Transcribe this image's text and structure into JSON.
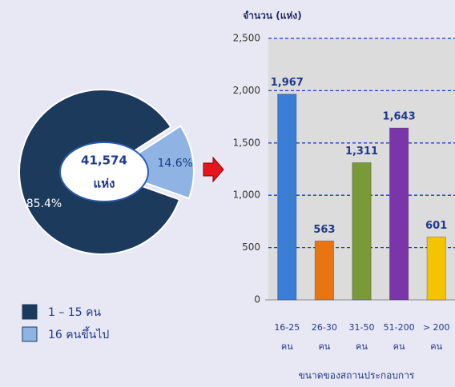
{
  "chart_data": [
    {
      "type": "pie",
      "categories": [
        "1 – 15 คน",
        "16 คนขึ้นไป"
      ],
      "values": [
        85.4,
        14.6
      ],
      "value_labels": [
        "85.4%",
        "14.6%"
      ],
      "colors": [
        "#1b3a5c",
        "#8fb4e3"
      ],
      "annotations": [
        "41,574",
        "แห่ง"
      ],
      "legend": "bottom-left"
    },
    {
      "type": "bar",
      "ylabel": "จำนวน (แห่ง)",
      "xlabel": "ขนาดของสถานประกอบการ",
      "categories": [
        [
          "16-25",
          "คน"
        ],
        [
          "26-30",
          "คน"
        ],
        [
          "31-50",
          "คน"
        ],
        [
          "51-200",
          "คน"
        ],
        [
          "> 200",
          "คน"
        ]
      ],
      "values": [
        1967,
        563,
        1311,
        1643,
        601
      ],
      "value_labels": [
        "1,967",
        "563",
        "1,311",
        "1,643",
        "601"
      ],
      "colors": [
        "#3a7fd5",
        "#e87511",
        "#7a9a3a",
        "#7a35a8",
        "#f5c400"
      ],
      "ylim": [
        0,
        2500
      ],
      "yticks": [
        0,
        500,
        {
          "value": 1000,
          "label": "1,000"
        },
        {
          "value": 1500,
          "label": "1,500"
        },
        {
          "value": 2000,
          "label": "2,000"
        },
        {
          "value": 2500,
          "label": "2,500"
        }
      ],
      "grid": true
    }
  ]
}
